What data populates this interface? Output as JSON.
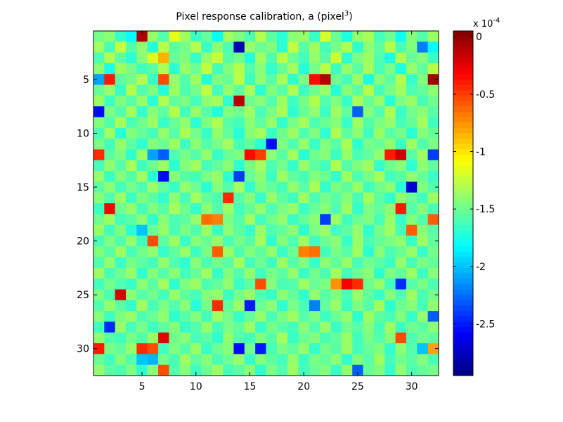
{
  "chart_data": {
    "type": "heatmap",
    "title": "Pixel response calibration, a (pixel",
    "title_superscript": "3",
    "title_suffix": ")",
    "xlabel": "",
    "ylabel": "",
    "grid": false,
    "rows": 32,
    "cols": 32,
    "xlim": [
      0.5,
      32.5
    ],
    "ylim": [
      0.5,
      32.5
    ],
    "y_reversed": true,
    "x_ticks": [
      5,
      10,
      15,
      20,
      25,
      30
    ],
    "x_tick_labels": [
      "5",
      "10",
      "15",
      "20",
      "25",
      "30"
    ],
    "y_ticks": [
      5,
      10,
      15,
      20,
      25,
      30
    ],
    "y_tick_labels": [
      "5",
      "10",
      "15",
      "20",
      "25",
      "30"
    ],
    "colorbar": {
      "colormap": "jet",
      "clim": [
        -2.95,
        0.05
      ],
      "ticks": [
        0,
        -0.5,
        -1,
        -1.5,
        -2,
        -2.5
      ],
      "tick_labels": [
        "0",
        "-0.5",
        "-1",
        "-1.5",
        "-2",
        "-2.5"
      ],
      "multiplier_base": "x 10",
      "multiplier_exp": "-4"
    },
    "values": [
      [
        -1.48,
        -1.41,
        -1.67,
        -1.82,
        -0.09,
        -1.39,
        -1.58,
        -1.15,
        -1.36,
        -1.65,
        -1.53,
        -1.8,
        -1.35,
        -1.45,
        -1.6,
        -1.3,
        -1.55,
        -1.7,
        -1.42,
        -1.38,
        -1.66,
        -1.2,
        -1.52,
        -1.74,
        -1.4,
        -1.33,
        -1.62,
        -1.5,
        -1.78,
        -1.44,
        -1.58,
        -1.36
      ],
      [
        -1.35,
        -1.62,
        -1.25,
        -1.58,
        -1.4,
        -1.72,
        -1.28,
        -1.55,
        -1.48,
        -1.3,
        -1.67,
        -1.42,
        -1.6,
        -2.8,
        -1.38,
        -1.51,
        -1.44,
        -1.7,
        -1.26,
        -1.57,
        -1.36,
        -1.63,
        -1.47,
        -1.32,
        -1.69,
        -1.41,
        -1.55,
        -1.29,
        -1.61,
        -1.45,
        -2.2,
        -1.83
      ],
      [
        -1.6,
        -1.3,
        -1.55,
        -1.7,
        -1.42,
        -1.18,
        -0.85,
        -1.52,
        -1.45,
        -1.66,
        -1.38,
        -1.24,
        -1.57,
        -1.48,
        -1.72,
        -1.35,
        -1.6,
        -1.28,
        -1.5,
        -1.63,
        -1.4,
        -1.56,
        -1.22,
        -1.68,
        -1.46,
        -1.37,
        -1.59,
        -1.74,
        -1.31,
        -1.53,
        -1.43,
        -1.65
      ],
      [
        -1.42,
        -1.75,
        -1.36,
        -1.48,
        -1.63,
        -1.55,
        -1.32,
        -1.7,
        -1.38,
        -1.51,
        -1.26,
        -1.62,
        -1.45,
        -1.3,
        -1.58,
        -1.43,
        -1.67,
        -1.52,
        -1.35,
        -1.71,
        -1.48,
        -1.29,
        -1.64,
        -1.4,
        -1.56,
        -1.34,
        -1.61,
        -1.47,
        -1.73,
        -1.39,
        -1.54,
        -1.28
      ],
      [
        -2.1,
        -0.4,
        -1.55,
        -1.48,
        -1.3,
        -1.66,
        -0.55,
        -1.4,
        -1.58,
        -1.36,
        -1.72,
        -1.45,
        -1.52,
        -1.28,
        -1.64,
        -1.41,
        -1.57,
        -1.33,
        -1.69,
        -1.46,
        -0.35,
        -0.1,
        -1.5,
        -1.62,
        -1.37,
        -1.74,
        -1.43,
        -1.55,
        -1.3,
        -1.67,
        -1.44,
        -0.05
      ],
      [
        -1.52,
        -1.38,
        -1.66,
        -1.3,
        -1.58,
        -1.45,
        -1.72,
        -1.36,
        -1.6,
        -1.48,
        -1.27,
        -1.63,
        -1.4,
        -1.55,
        -1.33,
        -1.69,
        -1.44,
        -1.57,
        -1.31,
        -1.65,
        -1.5,
        -1.38,
        -1.71,
        -1.42,
        -1.56,
        -1.29,
        -1.62,
        -1.47,
        -1.35,
        -1.6,
        -1.53,
        -1.41
      ],
      [
        -1.37,
        -1.64,
        -1.45,
        -1.56,
        -1.39,
        -1.7,
        -1.32,
        -1.53,
        -1.47,
        -1.62,
        -1.41,
        -1.35,
        -1.68,
        -0.12,
        -1.5,
        -1.43,
        -1.58,
        -1.36,
        -1.64,
        -1.48,
        -1.31,
        -1.59,
        -1.45,
        -1.66,
        -1.33,
        -1.52,
        -1.4,
        -1.7,
        -1.46,
        -1.38,
        -1.61,
        -1.49
      ],
      [
        -2.55,
        -1.46,
        -1.58,
        -1.35,
        -1.67,
        -1.42,
        -1.55,
        -1.3,
        -1.63,
        -1.38,
        -1.57,
        -1.72,
        -1.44,
        -1.5,
        -1.36,
        -1.61,
        -1.47,
        -1.33,
        -1.69,
        -1.52,
        -1.4,
        -1.65,
        -1.37,
        -1.54,
        -2.3,
        -1.43,
        -1.59,
        -1.32,
        -1.66,
        -1.49,
        -1.41,
        -1.56
      ],
      [
        -1.44,
        -1.58,
        -1.33,
        -1.61,
        -1.49,
        -1.37,
        -1.66,
        -1.52,
        -1.4,
        -1.7,
        -1.45,
        -1.31,
        -1.57,
        -1.63,
        -1.42,
        -1.55,
        -1.38,
        -1.68,
        -1.47,
        -1.34,
        -1.6,
        -1.51,
        -1.43,
        -1.67,
        -1.36,
        -1.58,
        -1.46,
        -1.39,
        -1.62,
        -1.53,
        -1.35,
        -1.64
      ],
      [
        -1.6,
        -1.36,
        -1.7,
        -1.45,
        -1.53,
        -1.62,
        -1.4,
        -1.57,
        -1.33,
        -1.48,
        -1.66,
        -1.39,
        -1.54,
        -1.71,
        -1.43,
        -1.35,
        -1.65,
        -1.5,
        -1.37,
        -1.59,
        -1.46,
        -1.68,
        -1.32,
        -1.55,
        -1.42,
        -1.63,
        -1.38,
        -1.56,
        -1.48,
        -1.7,
        -1.44,
        -1.52
      ],
      [
        -1.47,
        -1.63,
        -1.39,
        -1.55,
        -1.68,
        -1.43,
        -1.51,
        -1.36,
        -1.64,
        -1.41,
        -1.58,
        -1.47,
        -1.35,
        -1.62,
        -1.54,
        -1.7,
        -2.55,
        -1.45,
        -1.6,
        -1.38,
        -1.66,
        -1.44,
        -1.57,
        -1.33,
        -1.69,
        -1.48,
        -1.52,
        -1.4,
        -1.65,
        -1.37,
        -1.59,
        -1.46
      ],
      [
        -0.45,
        -1.55,
        -1.46,
        -1.69,
        -1.37,
        -2.1,
        -2.3,
        -1.6,
        -1.47,
        -1.58,
        -1.39,
        -1.67,
        -1.52,
        -1.45,
        -0.35,
        -0.5,
        -1.41,
        -1.56,
        -1.34,
        -1.71,
        -1.5,
        -1.43,
        -1.65,
        -1.38,
        -1.61,
        -1.54,
        -1.4,
        -0.4,
        -0.18,
        -1.57,
        -1.36,
        -2.4
      ],
      [
        -1.62,
        -1.4,
        -1.57,
        -1.33,
        -1.64,
        -1.51,
        -1.38,
        -1.69,
        -1.44,
        -1.36,
        -1.62,
        -1.53,
        -1.42,
        -1.7,
        -1.47,
        -1.35,
        -1.6,
        -1.48,
        -1.67,
        -1.39,
        -1.55,
        -1.63,
        -1.31,
        -1.58,
        -1.45,
        -1.37,
        -1.66,
        -1.5,
        -1.43,
        -1.68,
        -1.41,
        -1.54
      ],
      [
        -1.38,
        -1.66,
        -1.44,
        -1.58,
        -1.35,
        -1.72,
        -2.55,
        -1.43,
        -1.57,
        -1.63,
        -1.46,
        -1.39,
        -1.69,
        -2.4,
        -1.52,
        -1.41,
        -1.65,
        -1.37,
        -1.54,
        -1.62,
        -1.44,
        -1.51,
        -1.68,
        -1.36,
        -1.6,
        -1.47,
        -1.34,
        -1.63,
        -1.56,
        -1.4,
        -1.52,
        -1.65
      ],
      [
        -1.55,
        -1.41,
        -1.63,
        -1.48,
        -1.6,
        -1.37,
        -1.54,
        -1.66,
        -1.39,
        -1.51,
        -1.7,
        -1.43,
        -1.58,
        -1.35,
        -1.67,
        -1.45,
        -1.53,
        -1.62,
        -1.4,
        -1.57,
        -1.33,
        -1.68,
        -1.46,
        -1.55,
        -1.38,
        -1.64,
        -1.5,
        -1.42,
        -1.71,
        -2.7,
        -1.45,
        -1.58
      ],
      [
        -1.43,
        -1.59,
        -1.37,
        -1.65,
        -1.45,
        -1.56,
        -1.68,
        -1.41,
        -1.62,
        -1.35,
        -1.53,
        -1.6,
        -0.45,
        -1.57,
        -1.43,
        -1.67,
        -1.39,
        -1.55,
        -1.64,
        -1.36,
        -1.6,
        -1.48,
        -1.57,
        -1.43,
        -1.62,
        -1.35,
        -1.55,
        -1.68,
        -1.4,
        -1.51,
        -1.63,
        -1.37
      ],
      [
        -1.64,
        -0.3,
        -1.51,
        -1.39,
        -1.62,
        -1.45,
        -1.57,
        -1.34,
        -1.5,
        -1.67,
        -1.41,
        -1.58,
        -1.36,
        -1.63,
        -1.53,
        -1.4,
        -1.6,
        -1.47,
        -1.38,
        -1.65,
        -1.52,
        -1.43,
        -1.59,
        -1.36,
        -1.68,
        -1.46,
        -1.54,
        -1.41,
        -0.4,
        -1.57,
        -1.44,
        -1.61
      ],
      [
        -1.5,
        -1.37,
        -1.62,
        -1.56,
        -1.41,
        -1.68,
        -1.43,
        -1.6,
        -1.55,
        -1.39,
        -0.65,
        -0.7,
        -1.47,
        -1.58,
        -1.35,
        -1.63,
        -1.49,
        -1.4,
        -1.66,
        -1.53,
        -1.42,
        -2.4,
        -1.37,
        -1.64,
        -1.51,
        -1.45,
        -1.61,
        -1.38,
        -1.67,
        -1.44,
        -1.58,
        -0.6
      ],
      [
        -1.38,
        -1.63,
        -1.45,
        -1.7,
        -2.0,
        -1.52,
        -1.39,
        -1.61,
        -1.47,
        -1.58,
        -1.36,
        -1.65,
        -1.42,
        -1.55,
        -1.67,
        -1.38,
        -1.6,
        -1.53,
        -1.41,
        -1.69,
        -1.46,
        -1.37,
        -1.63,
        -1.55,
        -1.4,
        -1.68,
        -1.48,
        -1.36,
        -1.62,
        -0.6,
        -1.43,
        -1.57
      ],
      [
        -1.61,
        -1.46,
        -1.58,
        -1.4,
        -1.64,
        -0.55,
        -1.55,
        -1.37,
        -1.66,
        -1.43,
        -1.52,
        -1.39,
        -1.62,
        -1.48,
        -1.57,
        -1.35,
        -1.68,
        -1.44,
        -1.59,
        -1.36,
        -1.64,
        -1.5,
        -1.42,
        -1.67,
        -1.38,
        -1.61,
        -1.53,
        -1.46,
        -1.4,
        -1.65,
        -1.37,
        -1.54
      ],
      [
        -1.45,
        -1.57,
        -1.36,
        -1.62,
        -1.49,
        -1.4,
        -1.67,
        -1.54,
        -1.38,
        -1.65,
        -1.47,
        -0.6,
        -1.37,
        -1.6,
        -1.44,
        -1.55,
        -1.39,
        -1.66,
        -1.51,
        -0.7,
        -0.65,
        -1.63,
        -1.47,
        -1.57,
        -1.36,
        -1.7,
        -1.43,
        -1.6,
        -1.52,
        -1.38,
        -1.66,
        -1.48
      ],
      [
        -1.58,
        -1.4,
        -1.66,
        -1.47,
        -1.55,
        -1.63,
        -1.39,
        -1.59,
        -1.69,
        -1.42,
        -1.61,
        -1.48,
        -1.56,
        -1.35,
        -1.63,
        -1.5,
        -1.64,
        -1.37,
        -1.57,
        -1.44,
        -1.66,
        -1.41,
        -1.54,
        -1.38,
        -1.62,
        -1.49,
        -1.56,
        -1.65,
        -1.39,
        -1.61,
        -1.46,
        -1.53
      ],
      [
        -1.37,
        -1.62,
        -1.5,
        -1.38,
        -1.68,
        -1.44,
        -1.57,
        -1.41,
        -1.63,
        -1.52,
        -1.36,
        -1.67,
        -1.45,
        -1.58,
        -1.4,
        -1.64,
        -1.47,
        -1.55,
        -1.39,
        -1.66,
        -1.49,
        -1.6,
        -1.35,
        -1.63,
        -1.51,
        -1.42,
        -1.69,
        -1.46,
        -1.54,
        -1.37,
        -1.65,
        -1.43
      ],
      [
        -1.63,
        -1.48,
        -1.59,
        -1.66,
        -1.41,
        -1.56,
        -1.35,
        -1.69,
        -1.45,
        -1.37,
        -1.6,
        -1.53,
        -1.4,
        -1.66,
        -1.55,
        -0.55,
        -1.43,
        -1.61,
        -1.58,
        -1.36,
        -1.52,
        -1.45,
        -0.75,
        -0.3,
        -0.45,
        -1.5,
        -1.39,
        -1.63,
        -2.45,
        -1.57,
        -1.47,
        -1.6
      ],
      [
        -1.46,
        -1.6,
        -0.2,
        -1.42,
        -1.57,
        -1.49,
        -1.63,
        -1.38,
        -1.55,
        -1.62,
        -1.44,
        -1.39,
        -1.65,
        -1.48,
        -1.37,
        -1.59,
        -1.66,
        -1.42,
        -1.53,
        -1.68,
        -1.4,
        -1.57,
        -1.45,
        -1.62,
        -1.38,
        -1.54,
        -1.67,
        -1.43,
        -1.59,
        -1.36,
        -1.61,
        -1.48
      ],
      [
        -1.58,
        -1.39,
        -1.56,
        -1.67,
        -1.35,
        -1.62,
        -1.46,
        -1.59,
        -1.42,
        -1.71,
        -1.48,
        -0.45,
        -1.55,
        -1.37,
        -2.5,
        -1.52,
        -1.41,
        -1.68,
        -1.47,
        -1.6,
        -2.2,
        -1.53,
        -1.38,
        -1.65,
        -1.45,
        -1.57,
        -1.34,
        -1.69,
        -1.5,
        -1.43,
        -1.62,
        -1.4
      ],
      [
        -1.43,
        -1.64,
        -1.45,
        -1.38,
        -1.6,
        -1.51,
        -1.4,
        -1.68,
        -1.57,
        -1.44,
        -1.63,
        -1.36,
        -1.49,
        -1.66,
        -1.53,
        -1.39,
        -1.61,
        -1.47,
        -1.36,
        -1.58,
        -1.46,
        -1.65,
        -1.52,
        -1.4,
        -1.69,
        -1.37,
        -1.55,
        -1.61,
        -1.44,
        -1.66,
        -1.39,
        -2.3
      ],
      [
        -1.65,
        -2.45,
        -1.38,
        -1.62,
        -1.47,
        -1.65,
        -1.55,
        -1.43,
        -1.66,
        -1.58,
        -1.39,
        -1.61,
        -1.47,
        -1.54,
        -1.36,
        -1.67,
        -1.48,
        -1.56,
        -1.63,
        -1.42,
        -1.59,
        -1.38,
        -1.66,
        -1.48,
        -1.57,
        -1.43,
        -1.62,
        -1.37,
        -1.65,
        -1.5,
        -1.56,
        -1.41
      ],
      [
        -1.4,
        -1.56,
        -1.63,
        -1.47,
        -1.58,
        -1.37,
        -0.25,
        -1.5,
        -1.42,
        -1.62,
        -1.55,
        -1.68,
        -1.4,
        -1.59,
        -1.63,
        -1.45,
        -1.57,
        -1.35,
        -1.66,
        -1.51,
        -1.44,
        -1.61,
        -1.53,
        -1.38,
        -1.64,
        -1.47,
        -1.58,
        -1.42,
        -0.55,
        -1.6,
        -1.48,
        -1.55
      ],
      [
        -0.4,
        -1.47,
        -1.54,
        -1.39,
        -0.45,
        -0.55,
        -1.63,
        -1.45,
        -1.57,
        -1.38,
        -1.66,
        -1.51,
        -1.43,
        -2.55,
        -1.49,
        -2.5,
        -1.61,
        -1.46,
        -1.54,
        -1.4,
        -1.67,
        -1.48,
        -1.56,
        -1.37,
        -1.63,
        -1.52,
        -1.45,
        -1.68,
        -1.41,
        -1.58,
        -2.0,
        -0.8
      ],
      [
        -1.52,
        -1.63,
        -1.44,
        -1.58,
        -2.0,
        -2.05,
        -1.48,
        -1.61,
        -1.36,
        -1.55,
        -1.43,
        -1.6,
        -1.5,
        -1.38,
        -1.66,
        -1.44,
        -1.55,
        -1.62,
        -1.39,
        -1.65,
        -1.47,
        -1.53,
        -1.41,
        -1.68,
        -1.45,
        -1.57,
        -1.36,
        -1.63,
        -1.49,
        -1.56,
        -1.44,
        -1.61
      ],
      [
        -1.4,
        -1.55,
        -1.6,
        -1.46,
        -1.68,
        -1.41,
        -0.55,
        -1.58,
        -1.43,
        -1.64,
        -1.5,
        -1.37,
        -1.62,
        -1.55,
        -1.42,
        -1.69,
        -1.46,
        -1.58,
        -1.36,
        -1.63,
        -1.51,
        -1.44,
        -1.66,
        -1.39,
        -2.3,
        -1.52,
        -1.45,
        -1.67,
        -1.4,
        -1.59,
        -1.53,
        -1.48
      ]
    ]
  }
}
